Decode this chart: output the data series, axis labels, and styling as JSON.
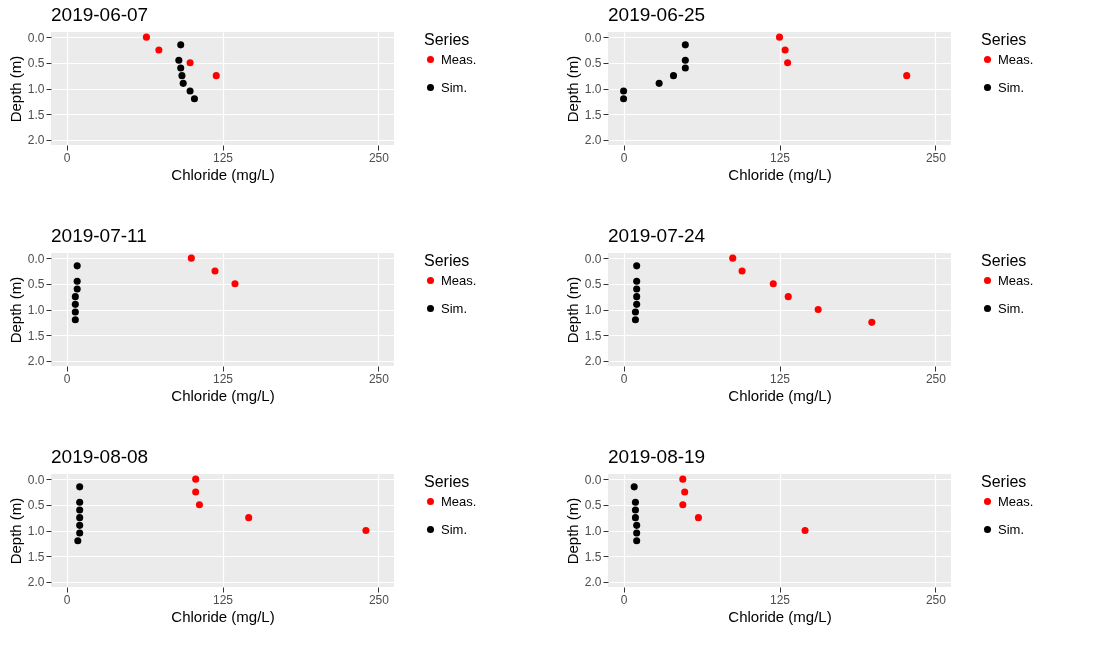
{
  "chart_data": [
    {
      "type": "scatter",
      "title": "2019-06-07",
      "xlabel": "Chloride (mg/L)",
      "ylabel": "Depth (m)",
      "legend_title": "Series",
      "legend": "right",
      "grid": true,
      "marker": "circle",
      "xlim": [
        -12.5,
        262.5
      ],
      "xticks": [
        0,
        125,
        250
      ],
      "ylim": [
        2.1,
        -0.1
      ],
      "yticks": [
        {
          "value": 0,
          "label": "0.0"
        },
        {
          "value": 0.5,
          "label": "0.5"
        },
        {
          "value": 1,
          "label": "1.0"
        },
        {
          "value": 1.5,
          "label": "1.5"
        },
        {
          "value": 2,
          "label": "2.0"
        }
      ],
      "series": [
        {
          "name": "Meas.",
          "color": "#ff0000",
          "x": [
            64,
            74,
            99,
            120
          ],
          "values": [
            0,
            0.25,
            0.5,
            0.75
          ]
        },
        {
          "name": "Sim.",
          "color": "#000000",
          "x": [
            91.5,
            90,
            91.5,
            92.5,
            93.5,
            99,
            102.5
          ],
          "values": [
            0.15,
            0.45,
            0.6,
            0.75,
            0.9,
            1.05,
            1.2
          ]
        }
      ]
    },
    {
      "type": "scatter",
      "title": "2019-06-25",
      "xlabel": "Chloride (mg/L)",
      "ylabel": "Depth (m)",
      "legend_title": "Series",
      "legend": "right",
      "grid": true,
      "marker": "circle",
      "xlim": [
        -12.5,
        262.5
      ],
      "xticks": [
        0,
        125,
        250
      ],
      "ylim": [
        2.1,
        -0.1
      ],
      "yticks": [
        {
          "value": 0,
          "label": "0.0"
        },
        {
          "value": 0.5,
          "label": "0.5"
        },
        {
          "value": 1,
          "label": "1.0"
        },
        {
          "value": 1.5,
          "label": "1.5"
        },
        {
          "value": 2,
          "label": "2.0"
        }
      ],
      "series": [
        {
          "name": "Meas.",
          "color": "#ff0000",
          "x": [
            125,
            129.5,
            131.5,
            227
          ],
          "values": [
            0,
            0.25,
            0.5,
            0.75
          ]
        },
        {
          "name": "Sim.",
          "color": "#000000",
          "x": [
            49.5,
            49.5,
            49.5,
            40,
            28.5,
            0,
            0
          ],
          "values": [
            0.15,
            0.45,
            0.6,
            0.75,
            0.9,
            1.05,
            1.2
          ]
        }
      ]
    },
    {
      "type": "scatter",
      "title": "2019-07-11",
      "xlabel": "Chloride (mg/L)",
      "ylabel": "Depth (m)",
      "legend_title": "Series",
      "legend": "right",
      "grid": true,
      "marker": "circle",
      "xlim": [
        -12.5,
        262.5
      ],
      "xticks": [
        0,
        125,
        250
      ],
      "ylim": [
        2.1,
        -0.1
      ],
      "yticks": [
        {
          "value": 0,
          "label": "0.0"
        },
        {
          "value": 0.5,
          "label": "0.5"
        },
        {
          "value": 1,
          "label": "1.0"
        },
        {
          "value": 1.5,
          "label": "1.5"
        },
        {
          "value": 2,
          "label": "2.0"
        }
      ],
      "series": [
        {
          "name": "Meas.",
          "color": "#ff0000",
          "x": [
            100,
            119,
            135
          ],
          "values": [
            0,
            0.25,
            0.5
          ]
        },
        {
          "name": "Sim.",
          "color": "#000000",
          "x": [
            8.5,
            8.5,
            8.5,
            7,
            7,
            7,
            7
          ],
          "values": [
            0.15,
            0.45,
            0.6,
            0.75,
            0.9,
            1.05,
            1.2
          ]
        }
      ]
    },
    {
      "type": "scatter",
      "title": "2019-07-24",
      "xlabel": "Chloride (mg/L)",
      "ylabel": "Depth (m)",
      "legend_title": "Series",
      "legend": "right",
      "grid": true,
      "marker": "circle",
      "xlim": [
        -12.5,
        262.5
      ],
      "xticks": [
        0,
        125,
        250
      ],
      "ylim": [
        2.1,
        -0.1
      ],
      "yticks": [
        {
          "value": 0,
          "label": "0.0"
        },
        {
          "value": 0.5,
          "label": "0.5"
        },
        {
          "value": 1,
          "label": "1.0"
        },
        {
          "value": 1.5,
          "label": "1.5"
        },
        {
          "value": 2,
          "label": "2.0"
        }
      ],
      "series": [
        {
          "name": "Meas.",
          "color": "#ff0000",
          "x": [
            87.5,
            95,
            120,
            132,
            156,
            199
          ],
          "values": [
            0,
            0.25,
            0.5,
            0.75,
            1,
            1.25
          ]
        },
        {
          "name": "Sim.",
          "color": "#000000",
          "x": [
            10.5,
            10.5,
            10.5,
            10.5,
            10.5,
            9.5,
            9.5
          ],
          "values": [
            0.15,
            0.45,
            0.6,
            0.75,
            0.9,
            1.05,
            1.2
          ]
        }
      ]
    },
    {
      "type": "scatter",
      "title": "2019-08-08",
      "xlabel": "Chloride (mg/L)",
      "ylabel": "Depth (m)",
      "legend_title": "Series",
      "legend": "right",
      "grid": true,
      "marker": "circle",
      "xlim": [
        -12.5,
        262.5
      ],
      "xticks": [
        0,
        125,
        250
      ],
      "ylim": [
        2.1,
        -0.1
      ],
      "yticks": [
        {
          "value": 0,
          "label": "0.0"
        },
        {
          "value": 0.5,
          "label": "0.5"
        },
        {
          "value": 1,
          "label": "1.0"
        },
        {
          "value": 1.5,
          "label": "1.5"
        },
        {
          "value": 2,
          "label": "2.0"
        }
      ],
      "series": [
        {
          "name": "Meas.",
          "color": "#ff0000",
          "x": [
            103.5,
            103.5,
            106.5,
            146,
            240
          ],
          "values": [
            0,
            0.25,
            0.5,
            0.75,
            1
          ]
        },
        {
          "name": "Sim.",
          "color": "#000000",
          "x": [
            10.5,
            10.5,
            10.5,
            10.5,
            10.5,
            10.5,
            9
          ],
          "values": [
            0.15,
            0.45,
            0.6,
            0.75,
            0.9,
            1.05,
            1.2
          ]
        }
      ]
    },
    {
      "type": "scatter",
      "title": "2019-08-19",
      "xlabel": "Chloride (mg/L)",
      "ylabel": "Depth (m)",
      "legend_title": "Series",
      "legend": "right",
      "grid": true,
      "marker": "circle",
      "xlim": [
        -12.5,
        262.5
      ],
      "xticks": [
        0,
        125,
        250
      ],
      "ylim": [
        2.1,
        -0.1
      ],
      "yticks": [
        {
          "value": 0,
          "label": "0.0"
        },
        {
          "value": 0.5,
          "label": "0.5"
        },
        {
          "value": 1,
          "label": "1.0"
        },
        {
          "value": 1.5,
          "label": "1.5"
        },
        {
          "value": 2,
          "label": "2.0"
        }
      ],
      "series": [
        {
          "name": "Meas.",
          "color": "#ff0000",
          "x": [
            47.5,
            49,
            47.5,
            60,
            145.5
          ],
          "values": [
            0,
            0.25,
            0.5,
            0.75,
            1
          ]
        },
        {
          "name": "Sim.",
          "color": "#000000",
          "x": [
            8.5,
            9.5,
            9.5,
            9.5,
            10.5,
            10.5,
            10.5
          ],
          "values": [
            0.15,
            0.45,
            0.6,
            0.75,
            0.9,
            1.05,
            1.2
          ]
        }
      ]
    }
  ]
}
